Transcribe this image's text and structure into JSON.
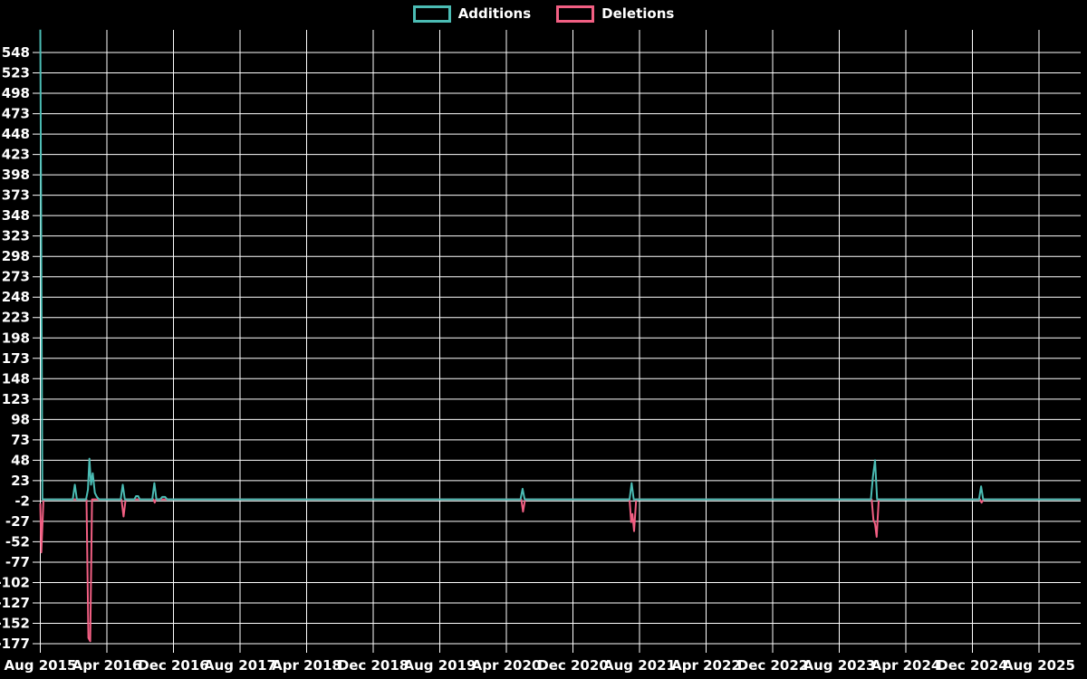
{
  "legend": {
    "additions_label": "Additions",
    "deletions_label": "Deletions"
  },
  "colors": {
    "background": "#000000",
    "grid": "#ffffff",
    "text": "#ffffff",
    "additions": "#4bbcb4",
    "deletions": "#f25f83"
  },
  "chart_data": {
    "type": "line",
    "title": "",
    "xlabel": "",
    "ylabel": "",
    "grid": true,
    "legend_position": "top-center",
    "x_axis": {
      "unit": "month",
      "start_label": "Aug 2015",
      "end_label": "Aug 2025",
      "tick_interval_months": 8,
      "tick_labels": [
        "Aug 2015",
        "Apr 2016",
        "Dec 2016",
        "Aug 2017",
        "Apr 2018",
        "Dec 2018",
        "Aug 2019",
        "Apr 2020",
        "Dec 2020",
        "Aug 2021",
        "Apr 2022",
        "Dec 2022",
        "Aug 2023",
        "Apr 2024",
        "Dec 2024",
        "Aug 2025"
      ]
    },
    "y_axis": {
      "tick_step": 25,
      "tick_labels": [
        548,
        523,
        498,
        473,
        448,
        423,
        398,
        373,
        348,
        323,
        298,
        273,
        248,
        223,
        198,
        173,
        148,
        123,
        98,
        73,
        48,
        23,
        -2,
        -27,
        -52,
        -77,
        -102,
        -127,
        -152,
        -177
      ],
      "min": -178,
      "max": 576
    },
    "xlim_months": [
      0,
      125
    ],
    "series": [
      {
        "name": "Additions",
        "color_key": "additions",
        "points_month_value": [
          [
            0,
            576
          ],
          [
            0.25,
            0
          ],
          [
            3.9,
            0
          ],
          [
            4.15,
            18
          ],
          [
            4.4,
            0
          ],
          [
            5.5,
            0
          ],
          [
            5.72,
            12
          ],
          [
            5.9,
            50
          ],
          [
            6.1,
            18
          ],
          [
            6.3,
            32
          ],
          [
            6.55,
            8
          ],
          [
            6.8,
            3
          ],
          [
            7.05,
            0
          ],
          [
            9.65,
            0
          ],
          [
            9.9,
            18
          ],
          [
            10.15,
            0
          ],
          [
            11.3,
            0
          ],
          [
            11.5,
            4
          ],
          [
            11.75,
            4
          ],
          [
            11.95,
            0
          ],
          [
            13.45,
            0
          ],
          [
            13.7,
            20
          ],
          [
            13.95,
            0
          ],
          [
            14.4,
            0
          ],
          [
            14.65,
            3
          ],
          [
            15.0,
            3
          ],
          [
            15.25,
            0
          ],
          [
            57.7,
            0
          ],
          [
            57.95,
            13
          ],
          [
            58.2,
            0
          ],
          [
            70.8,
            0
          ],
          [
            71.05,
            20
          ],
          [
            71.3,
            0
          ],
          [
            99.8,
            0
          ],
          [
            100.05,
            28
          ],
          [
            100.3,
            48
          ],
          [
            100.55,
            0
          ],
          [
            112.8,
            0
          ],
          [
            113.05,
            16
          ],
          [
            113.3,
            0
          ],
          [
            125,
            0
          ]
        ]
      },
      {
        "name": "Deletions",
        "color_key": "deletions",
        "points_month_value": [
          [
            0,
            -5
          ],
          [
            0.12,
            -65
          ],
          [
            0.38,
            0
          ],
          [
            5.55,
            0
          ],
          [
            5.78,
            -170
          ],
          [
            6.0,
            -174
          ],
          [
            6.22,
            0
          ],
          [
            9.75,
            0
          ],
          [
            10.0,
            -21
          ],
          [
            10.25,
            0
          ],
          [
            13.6,
            0
          ],
          [
            13.75,
            -4
          ],
          [
            13.9,
            0
          ],
          [
            57.8,
            0
          ],
          [
            58.0,
            -15
          ],
          [
            58.25,
            0
          ],
          [
            70.8,
            0
          ],
          [
            71.0,
            -28
          ],
          [
            71.15,
            -18
          ],
          [
            71.35,
            -39
          ],
          [
            71.6,
            0
          ],
          [
            99.9,
            0
          ],
          [
            100.1,
            -25
          ],
          [
            100.3,
            -30
          ],
          [
            100.5,
            -46
          ],
          [
            100.75,
            0
          ],
          [
            112.9,
            0
          ],
          [
            113.1,
            -4
          ],
          [
            113.35,
            0
          ],
          [
            125,
            0
          ]
        ]
      }
    ]
  }
}
